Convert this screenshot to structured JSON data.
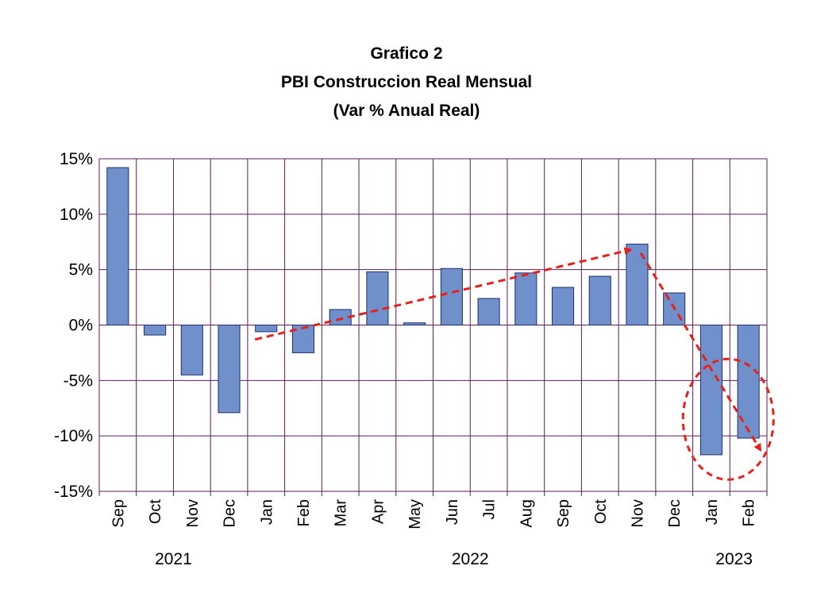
{
  "chart_data": {
    "type": "bar",
    "title": "Grafico 2",
    "subtitle": "PBI Construccion Real Mensual",
    "subtitle2": "(Var % Anual Real)",
    "categories": [
      "Sep",
      "Oct",
      "Nov",
      "Dec",
      "Jan",
      "Feb",
      "Mar",
      "Apr",
      "May",
      "Jun",
      "Jul",
      "Aug",
      "Sep",
      "Oct",
      "Nov",
      "Dec",
      "Jan",
      "Feb"
    ],
    "values": [
      14.2,
      -0.9,
      -4.5,
      -7.9,
      -0.6,
      -2.5,
      1.4,
      4.8,
      0.2,
      5.1,
      2.4,
      4.7,
      3.4,
      4.4,
      7.3,
      2.9,
      -11.7,
      -10.2
    ],
    "year_labels": [
      {
        "label": "2021",
        "start": 0,
        "end": 3
      },
      {
        "label": "2022",
        "start": 4,
        "end": 15
      },
      {
        "label": "2023",
        "start": 16,
        "end": 17
      }
    ],
    "yticks": [
      "15%",
      "10%",
      "5%",
      "0%",
      "-5%",
      "-10%",
      "-15%"
    ],
    "ylim": [
      -15,
      15
    ],
    "ytick_values": [
      15,
      10,
      5,
      0,
      -5,
      -10,
      -15
    ],
    "grid": true,
    "colors": {
      "bar_fill": "#7090CC",
      "bar_stroke": "#1F2F6F",
      "grid": "#5A1E5A",
      "annotation": "#E8201A"
    },
    "annotations": [
      {
        "type": "arrow",
        "from": {
          "x_index": 4,
          "y": -1.3
        },
        "to": {
          "x_index": 14,
          "y": 6.8
        }
      },
      {
        "type": "arrow",
        "from": {
          "x_index": 14.4,
          "y": 6.5
        },
        "to": {
          "x_index": 17.5,
          "y": -11.3
        }
      },
      {
        "type": "dashed-ellipse",
        "around_indices": [
          16,
          17
        ]
      }
    ]
  }
}
